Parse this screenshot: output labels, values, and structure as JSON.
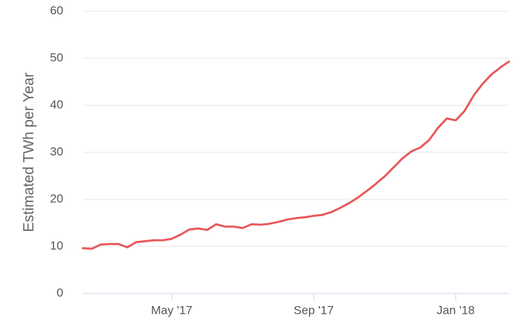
{
  "chart_data": {
    "type": "line",
    "y_label": "Estimated TWh per Year",
    "categories": [
      null,
      null,
      null,
      null,
      null,
      null,
      null,
      null,
      null,
      null,
      "May '17",
      null,
      null,
      null,
      null,
      null,
      null,
      null,
      null,
      null,
      null,
      null,
      null,
      null,
      null,
      null,
      "Sep '17",
      null,
      null,
      null,
      null,
      null,
      null,
      null,
      null,
      null,
      null,
      null,
      null,
      null,
      null,
      null,
      "Jan '18",
      null,
      null,
      null,
      null,
      null,
      null
    ],
    "series": [
      {
        "color": "#e8595b",
        "values": [
          9.6,
          9.5,
          10.4,
          10.5,
          10.5,
          9.8,
          10.9,
          11.1,
          11.3,
          11.3,
          11.6,
          12.5,
          13.6,
          13.8,
          13.5,
          14.7,
          14.2,
          14.2,
          13.9,
          14.7,
          14.6,
          14.8,
          15.2,
          15.7,
          16.0,
          16.2,
          16.5,
          16.7,
          17.3,
          18.2,
          19.2,
          20.4,
          21.8,
          23.3,
          24.9,
          26.8,
          28.7,
          30.2,
          31.0,
          32.6,
          35.2,
          37.2,
          36.8,
          38.8,
          42.0,
          44.5,
          46.5,
          48.0,
          49.3
        ]
      }
    ],
    "ylim": [
      0,
      60
    ],
    "yticks": [
      0,
      10,
      20,
      30,
      40,
      50,
      60
    ],
    "grid": true
  }
}
